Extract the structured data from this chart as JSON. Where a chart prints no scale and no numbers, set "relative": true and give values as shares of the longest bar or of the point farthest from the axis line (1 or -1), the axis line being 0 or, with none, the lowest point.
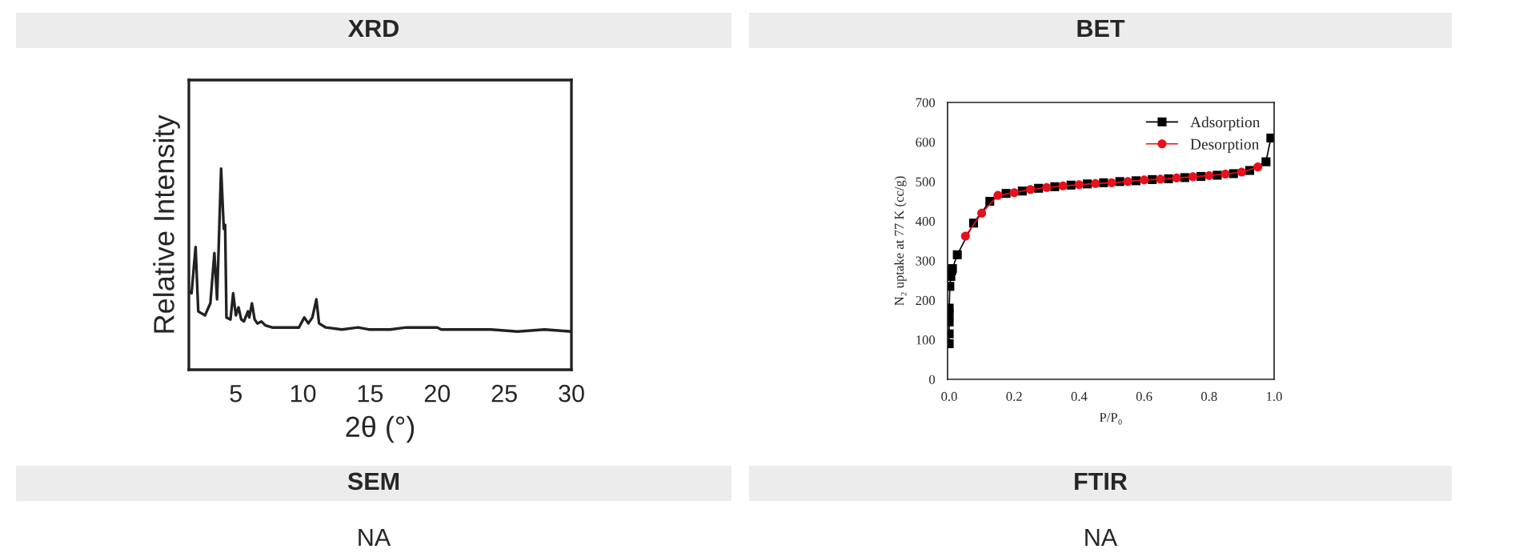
{
  "chart_data": [
    {
      "type": "line",
      "title": "XRD",
      "xlabel": "2θ (°)",
      "ylabel": "Relative Intensity",
      "relative": true,
      "color": "#222222",
      "x": [
        1.5,
        1.7,
        2.0,
        2.2,
        2.7,
        3.1,
        3.4,
        3.6,
        3.9,
        4.1,
        4.2,
        4.3,
        4.6,
        4.8,
        5.0,
        5.2,
        5.4,
        5.6,
        5.9,
        6.0,
        6.2,
        6.4,
        6.6,
        6.9,
        7.2,
        7.7,
        8.7,
        9.7,
        10.1,
        10.4,
        10.7,
        11.0,
        11.2,
        11.7,
        12.9,
        14.1,
        14.9,
        16.5,
        17.7,
        18.9,
        20.0,
        20.3,
        22.1,
        24.0,
        26.0,
        28.0,
        30.0
      ],
      "values": [
        0.39,
        0.38,
        0.61,
        0.29,
        0.27,
        0.33,
        0.58,
        0.35,
        1.0,
        0.7,
        0.72,
        0.26,
        0.25,
        0.38,
        0.27,
        0.31,
        0.25,
        0.24,
        0.29,
        0.26,
        0.33,
        0.25,
        0.23,
        0.24,
        0.22,
        0.21,
        0.21,
        0.21,
        0.26,
        0.23,
        0.26,
        0.35,
        0.23,
        0.21,
        0.2,
        0.21,
        0.2,
        0.2,
        0.21,
        0.21,
        0.21,
        0.2,
        0.2,
        0.2,
        0.19,
        0.2,
        0.19
      ],
      "xlim": [
        1.5,
        30
      ],
      "xticks": [
        5,
        10,
        15,
        20,
        25,
        30
      ],
      "tick_labels": "x",
      "grid": false,
      "legend": false
    },
    {
      "type": "line",
      "title": "BET",
      "xlabel": "P/P₀",
      "ylabel": "N₂ uptake at 77 K (cc/g)",
      "xlim": [
        -0.005,
        1.0
      ],
      "xticks": [
        {
          "value": 0,
          "label": "0.0"
        },
        0.2,
        0.4,
        0.6,
        0.8,
        {
          "value": 1,
          "label": "1.0"
        }
      ],
      "ylim": [
        0,
        700
      ],
      "yticks": [
        0,
        100,
        200,
        300,
        400,
        500,
        600,
        700
      ],
      "grid": false,
      "legend": "top right",
      "series": [
        {
          "name": "Adsorption",
          "color": "#000000",
          "marker": "square",
          "x": [
            0.0,
            0.0,
            0.0,
            0.0,
            0.0,
            0.002,
            0.005,
            0.008,
            0.01,
            0.025,
            0.05,
            0.075,
            0.1,
            0.125,
            0.15,
            0.175,
            0.2,
            0.225,
            0.25,
            0.275,
            0.3,
            0.325,
            0.35,
            0.375,
            0.4,
            0.425,
            0.45,
            0.475,
            0.5,
            0.525,
            0.55,
            0.575,
            0.6,
            0.625,
            0.65,
            0.675,
            0.7,
            0.725,
            0.75,
            0.775,
            0.8,
            0.825,
            0.85,
            0.875,
            0.9,
            0.925,
            0.95,
            0.975,
            0.99
          ],
          "values": [
            90,
            115,
            145,
            165,
            180,
            235,
            260,
            275,
            280,
            315,
            null,
            395,
            null,
            450,
            null,
            470,
            null,
            476,
            null,
            483,
            null,
            487,
            null,
            491,
            null,
            494,
            null,
            497,
            null,
            500,
            null,
            502,
            null,
            505,
            null,
            507,
            null,
            510,
            null,
            513,
            null,
            516,
            null,
            520,
            null,
            528,
            null,
            550,
            610
          ]
        },
        {
          "name": "Desorption",
          "color": "#e8101a",
          "marker": "circle",
          "x": [
            0.05,
            0.1,
            0.15,
            0.2,
            0.25,
            0.3,
            0.35,
            0.4,
            0.45,
            0.5,
            0.55,
            0.6,
            0.65,
            0.7,
            0.75,
            0.8,
            0.85,
            0.9,
            0.95
          ],
          "values": [
            362,
            420,
            465,
            472,
            480,
            485,
            489,
            492,
            495,
            497,
            500,
            504,
            506,
            509,
            512,
            515,
            519,
            524,
            537
          ]
        }
      ]
    },
    {
      "type": "other",
      "title": "SEM",
      "annotations": [
        "NA"
      ]
    },
    {
      "type": "other",
      "title": "FTIR",
      "annotations": [
        "NA"
      ]
    }
  ]
}
